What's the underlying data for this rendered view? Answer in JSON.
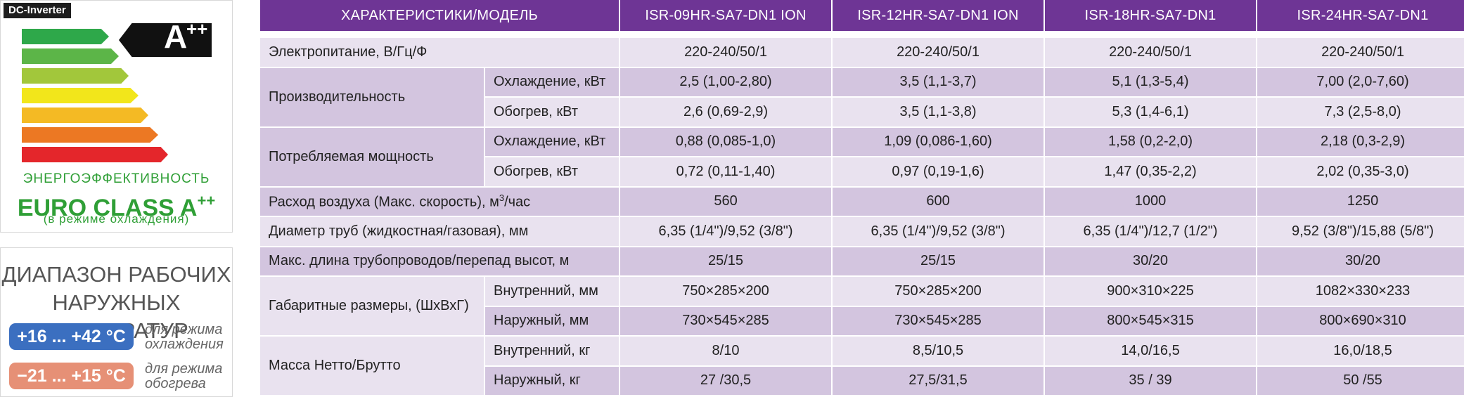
{
  "energy": {
    "badge": "DC-Inverter",
    "class_letter": "A",
    "class_plus": "++",
    "bar_colors": [
      "#2ea84a",
      "#5cb548",
      "#a2c73b",
      "#f2e61b",
      "#f4ba24",
      "#ec7823",
      "#e4262b"
    ],
    "caption": "ЭНЕРГОЭФФЕКТИВНОСТЬ",
    "euro_class": "EURO CLASS A",
    "euro_plus": "++",
    "mode_note": "(в режиме охлаждения)"
  },
  "temp_range": {
    "title_line1": "ДИАПАЗОН РАБОЧИХ",
    "title_line2": "НАРУЖНЫХ ТЕМПЕРАТУР",
    "cool_range": "+16 ... +42 °С",
    "cool_color": "#3b6fc0",
    "cool_note_line1": "для режима",
    "cool_note_line2": "охлаждения",
    "heat_range": "−21 ... +15 °С",
    "heat_color": "#e69076",
    "heat_note_line1": "для режима",
    "heat_note_line2": "обогрева"
  },
  "table": {
    "header": [
      "ХАРАКТЕРИСТИКИ/МОДЕЛЬ",
      "ISR-09HR-SA7-DN1 ION",
      "ISR-12HR-SA7-DN1 ION",
      "ISR-18HR-SA7-DN1",
      "ISR-24HR-SA7-DN1"
    ],
    "header_color": "#6e3595",
    "rows": [
      {
        "label": "Электропитание, В/Гц/Ф",
        "values": [
          "220-240/50/1",
          "220-240/50/1",
          "220-240/50/1",
          "220-240/50/1"
        ]
      },
      {
        "group": "Производительность",
        "sub": "Охлаждение, кВт",
        "values": [
          "2,5 (1,00-2,80)",
          "3,5 (1,1-3,7)",
          "5,1 (1,3-5,4)",
          "7,00 (2,0-7,60)"
        ]
      },
      {
        "sub": "Обогрев, кВт",
        "values": [
          "2,6 (0,69-2,9)",
          "3,5 (1,1-3,8)",
          "5,3 (1,4-6,1)",
          "7,3 (2,5-8,0)"
        ]
      },
      {
        "group": "Потребляемая мощность",
        "sub": "Охлаждение, кВт",
        "values": [
          "0,88 (0,085-1,0)",
          "1,09 (0,086-1,60)",
          "1,58 (0,2-2,0)",
          "2,18 (0,3-2,9)"
        ]
      },
      {
        "sub": "Обогрев, кВт",
        "values": [
          "0,72 (0,11-1,40)",
          "0,97 (0,19-1,6)",
          "1,47 (0,35-2,2)",
          "2,02 (0,35-3,0)"
        ]
      },
      {
        "label_main": "Расход воздуха (Макс. скорость), м",
        "label_sup": "3",
        "label_tail": "/час",
        "values": [
          "560",
          "600",
          "1000",
          "1250"
        ]
      },
      {
        "label": "Диаметр труб (жидкостная/газовая), мм",
        "values": [
          "6,35 (1/4\")/9,52 (3/8\")",
          "6,35 (1/4\")/9,52 (3/8\")",
          "6,35 (1/4\")/12,7 (1/2\")",
          "9,52 (3/8\")/15,88 (5/8\")"
        ]
      },
      {
        "label": "Макс. длина трубопроводов/перепад высот, м",
        "values": [
          "25/15",
          "25/15",
          "30/20",
          "30/20"
        ]
      },
      {
        "group": "Габаритные размеры, (ШхВхГ)",
        "sub": "Внутренний, мм",
        "values": [
          "750×285×200",
          "750×285×200",
          "900×310×225",
          "1082×330×233"
        ]
      },
      {
        "sub": "Наружный, мм",
        "values": [
          "730×545×285",
          "730×545×285",
          "800×545×315",
          "800×690×310"
        ]
      },
      {
        "group": "Масса Нетто/Брутто",
        "sub": "Внутренний, кг",
        "values": [
          "8/10",
          "8,5/10,5",
          "14,0/16,5",
          "16,0/18,5"
        ]
      },
      {
        "sub": "Наружный, кг",
        "values": [
          "27 /30,5",
          "27,5/31,5",
          "35 / 39",
          "50 /55"
        ]
      }
    ]
  }
}
